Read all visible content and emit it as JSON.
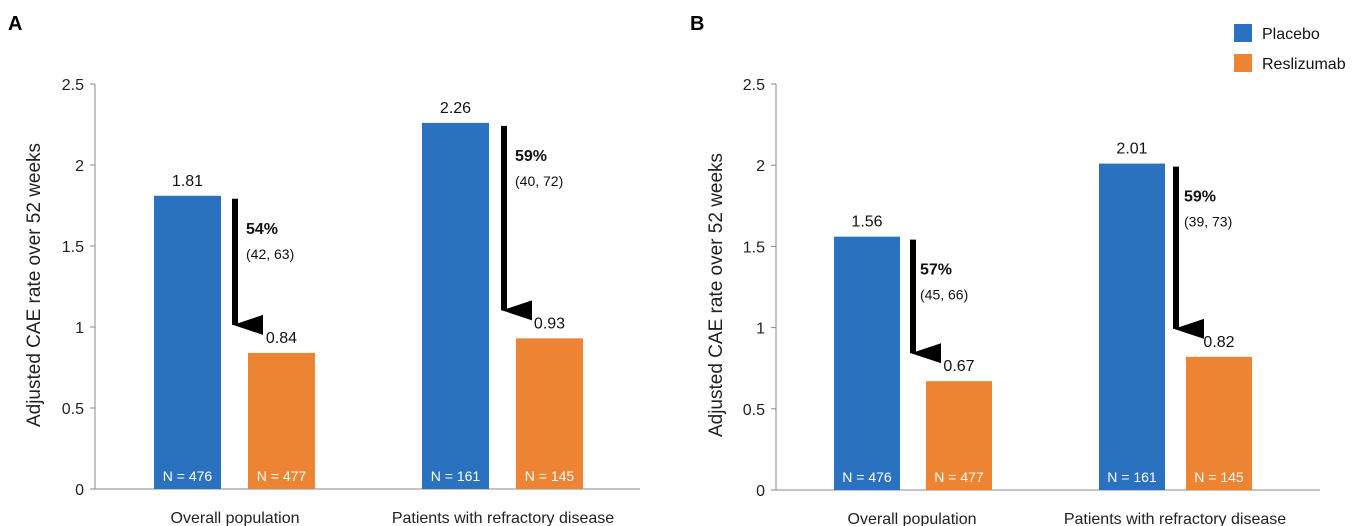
{
  "colors": {
    "placebo": "#2a72c0",
    "reslizumab": "#ed8434",
    "axis": "#888888",
    "arrow": "#000000"
  },
  "legend": {
    "position": "top-right",
    "items": [
      {
        "name": "Placebo",
        "color": "#2a72c0"
      },
      {
        "name": "Reslizumab",
        "color": "#ed8434"
      }
    ]
  },
  "chart_data": [
    {
      "panel": "A",
      "type": "bar",
      "ylabel": "Adjusted CAE rate over 52 weeks",
      "ylim": [
        0,
        2.5
      ],
      "yticks": [
        "0",
        "0.5",
        "1",
        "1.5",
        "2",
        "2.5"
      ],
      "categories": [
        "Overall population",
        "Patients with refractory disease"
      ],
      "series": [
        {
          "name": "Placebo",
          "values": [
            1.81,
            2.26
          ],
          "labels": [
            "1.81",
            "2.26"
          ],
          "n_labels": [
            "N = 476",
            "N = 161"
          ]
        },
        {
          "name": "Reslizumab",
          "values": [
            0.84,
            0.93
          ],
          "labels": [
            "0.84",
            "0.93"
          ],
          "n_labels": [
            "N = 477",
            "N = 145"
          ]
        }
      ],
      "annotations": [
        {
          "reduction": "54%",
          "ci": "(42, 63)"
        },
        {
          "reduction": "59%",
          "ci": "(40, 72)"
        }
      ]
    },
    {
      "panel": "B",
      "type": "bar",
      "ylabel": "Adjusted CAE rate over 52 weeks",
      "ylim": [
        0,
        2.5
      ],
      "yticks": [
        "0",
        "0.5",
        "1",
        "1.5",
        "2",
        "2.5"
      ],
      "categories": [
        "Overall population",
        "Patients with refractory disease"
      ],
      "series": [
        {
          "name": "Placebo",
          "values": [
            1.56,
            2.01
          ],
          "labels": [
            "1.56",
            "2.01"
          ],
          "n_labels": [
            "N = 476",
            "N = 161"
          ]
        },
        {
          "name": "Reslizumab",
          "values": [
            0.67,
            0.82
          ],
          "labels": [
            "0.67",
            "0.82"
          ],
          "n_labels": [
            "N = 477",
            "N = 145"
          ]
        }
      ],
      "annotations": [
        {
          "reduction": "57%",
          "ci": "(45, 66)"
        },
        {
          "reduction": "59%",
          "ci": "(39, 73)"
        }
      ]
    }
  ]
}
